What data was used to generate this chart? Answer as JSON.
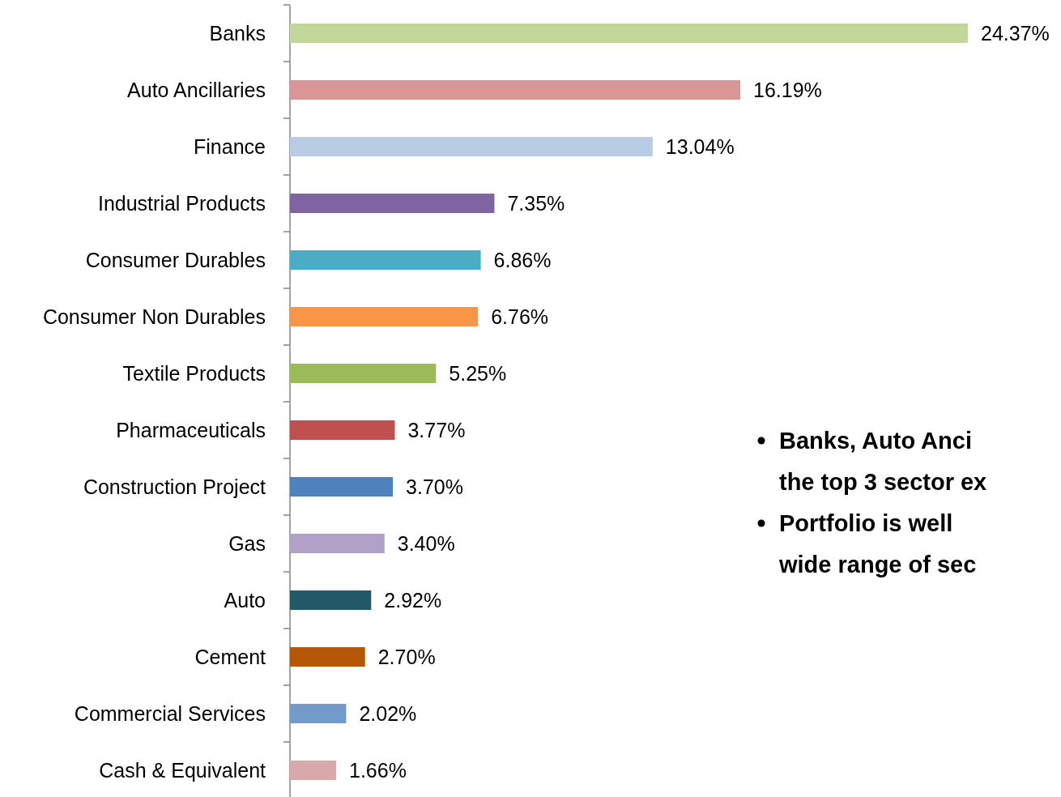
{
  "chart_data": {
    "type": "bar",
    "orientation": "horizontal",
    "categories": [
      "Banks",
      "Auto Ancillaries",
      "Finance",
      "Industrial Products",
      "Consumer Durables",
      "Consumer Non Durables",
      "Textile Products",
      "Pharmaceuticals",
      "Construction Project",
      "Gas",
      "Auto",
      "Cement",
      "Commercial Services",
      "Cash & Equivalent"
    ],
    "values": [
      24.37,
      16.19,
      13.04,
      7.35,
      6.86,
      6.76,
      5.25,
      3.77,
      3.7,
      3.4,
      2.92,
      2.7,
      2.02,
      1.66
    ],
    "value_labels": [
      "24.37%",
      "16.19%",
      "13.04%",
      "7.35%",
      "6.86%",
      "6.76%",
      "5.25%",
      "3.77%",
      "3.70%",
      "3.40%",
      "2.92%",
      "2.70%",
      "2.02%",
      "1.66%"
    ],
    "colors": [
      "#c4d79b",
      "#da9694",
      "#b8cce4",
      "#8064a2",
      "#4bacc6",
      "#f79646",
      "#9bbb59",
      "#c0504d",
      "#4f81bd",
      "#b1a0c7",
      "#215967",
      "#b65708",
      "#729aca",
      "#d9a9a9"
    ],
    "annotations": [
      "Banks, Auto Anci\nthe top 3 sector ex",
      "Portfolio is well\nwide range of sec"
    ]
  }
}
